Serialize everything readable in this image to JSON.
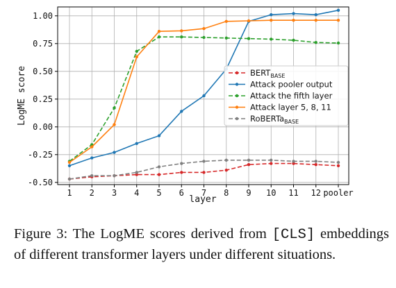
{
  "chart_data": {
    "type": "line",
    "xlabel": "layer",
    "ylabel": "LogME score",
    "categories": [
      "1",
      "2",
      "3",
      "4",
      "5",
      "6",
      "7",
      "8",
      "9",
      "10",
      "11",
      "12",
      "pooler"
    ],
    "ylim": [
      -0.52,
      1.08
    ],
    "yticks": [
      -0.5,
      -0.25,
      0.0,
      0.25,
      0.5,
      0.75,
      1.0
    ],
    "ytick_labels": [
      "-0.50",
      "-0.25",
      "0.00",
      "0.25",
      "0.50",
      "0.75",
      "1.00"
    ],
    "grid": true,
    "legend_position": "center-right",
    "series": [
      {
        "name_base": "BERT",
        "name_sub": "BASE",
        "color": "#d62728",
        "dash": true,
        "values": [
          -0.47,
          -0.45,
          -0.44,
          -0.43,
          -0.43,
          -0.41,
          -0.41,
          -0.39,
          -0.34,
          -0.33,
          -0.33,
          -0.34,
          -0.35
        ]
      },
      {
        "name_base": "Attack pooler output",
        "name_sub": "",
        "color": "#1f77b4",
        "dash": false,
        "values": [
          -0.35,
          -0.28,
          -0.23,
          -0.15,
          -0.08,
          0.14,
          0.28,
          0.52,
          0.95,
          1.01,
          1.02,
          1.01,
          1.05
        ]
      },
      {
        "name_base": "Attack the fifth layer",
        "name_sub": "",
        "color": "#2ca02c",
        "dash": true,
        "values": [
          -0.31,
          -0.16,
          0.17,
          0.68,
          0.81,
          0.81,
          0.805,
          0.8,
          0.795,
          0.79,
          0.78,
          0.76,
          0.755
        ]
      },
      {
        "name_base": "Attack layer 5, 8, 11",
        "name_sub": "",
        "color": "#ff7f0e",
        "dash": false,
        "values": [
          -0.32,
          -0.18,
          0.02,
          0.63,
          0.86,
          0.865,
          0.885,
          0.95,
          0.955,
          0.96,
          0.96,
          0.96,
          0.96
        ]
      },
      {
        "name_base": "RoBERTa",
        "name_sub": "BASE",
        "color": "#7f7f7f",
        "dash": true,
        "values": [
          -0.47,
          -0.44,
          -0.44,
          -0.41,
          -0.36,
          -0.33,
          -0.31,
          -0.3,
          -0.3,
          -0.3,
          -0.31,
          -0.31,
          -0.32
        ]
      }
    ]
  },
  "caption": {
    "label": "Figure 3:",
    "text_before": "The LogME scores derived from",
    "code": "[CLS]",
    "text_after": "embeddings of different transformer layers under different situations."
  }
}
